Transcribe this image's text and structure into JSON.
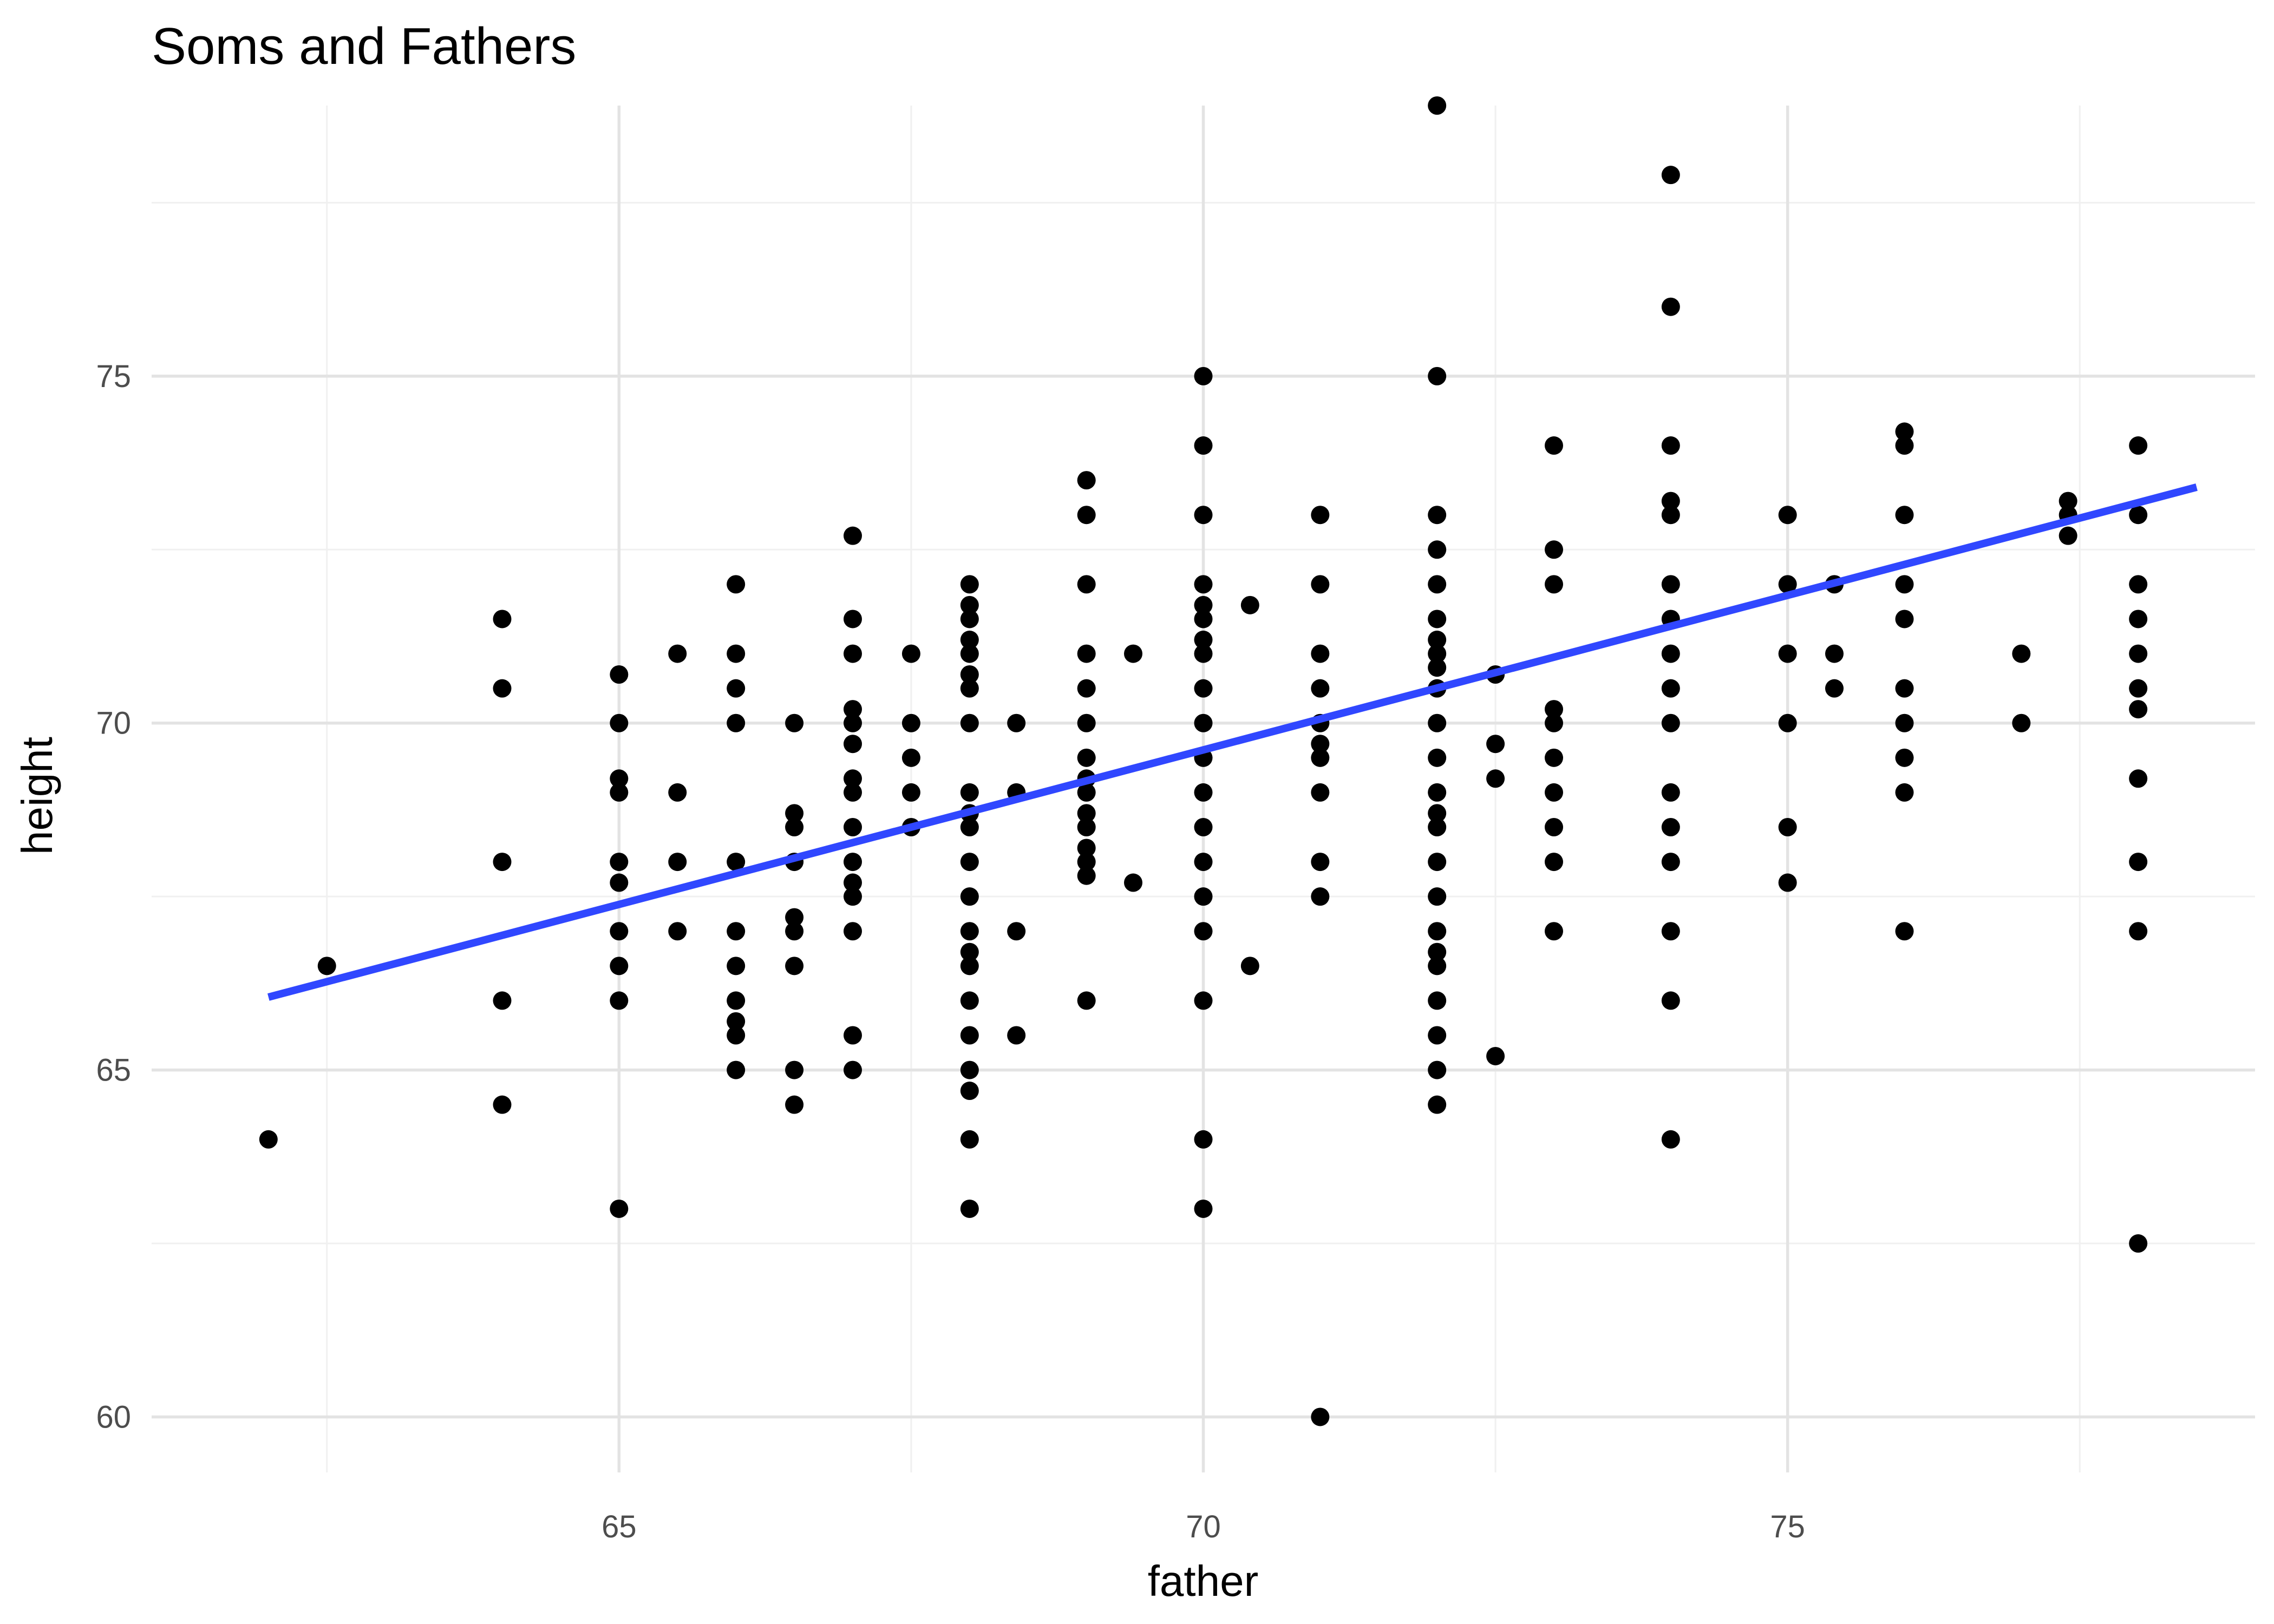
{
  "chart_data": {
    "type": "scatter",
    "title": "Soms and Fathers",
    "xlabel": "father",
    "ylabel": "height",
    "xlim": [
      61.0,
      79.0
    ],
    "ylim": [
      59.2,
      78.9
    ],
    "x_ticks": [
      65,
      70,
      75
    ],
    "y_ticks": [
      60,
      65,
      70,
      75
    ],
    "x_tick_labels": [
      "65",
      "70",
      "75"
    ],
    "y_tick_labels": [
      "60",
      "65",
      "70",
      "75"
    ],
    "grid": true,
    "legend": "none",
    "point_color": "#000000",
    "trend_line_color": "#3047ff",
    "trend_line": {
      "x": [
        62.0,
        78.5
      ],
      "y": [
        66.05,
        73.4
      ]
    },
    "points": [
      [
        62.0,
        64.0
      ],
      [
        62.5,
        66.5
      ],
      [
        64.0,
        71.5
      ],
      [
        64.0,
        70.5
      ],
      [
        64.0,
        68.0
      ],
      [
        64.0,
        66.0
      ],
      [
        64.0,
        64.5
      ],
      [
        65.0,
        70.7
      ],
      [
        65.0,
        70.0
      ],
      [
        65.0,
        69.2
      ],
      [
        65.0,
        69.0
      ],
      [
        65.0,
        68.0
      ],
      [
        65.0,
        67.7
      ],
      [
        65.0,
        67.0
      ],
      [
        65.0,
        66.5
      ],
      [
        65.0,
        66.0
      ],
      [
        65.0,
        63.0
      ],
      [
        65.5,
        71.0
      ],
      [
        65.5,
        69.0
      ],
      [
        65.5,
        68.0
      ],
      [
        65.5,
        67.0
      ],
      [
        66.0,
        72.0
      ],
      [
        66.0,
        71.0
      ],
      [
        66.0,
        70.5
      ],
      [
        66.0,
        70.0
      ],
      [
        66.0,
        68.0
      ],
      [
        66.0,
        67.0
      ],
      [
        66.0,
        66.5
      ],
      [
        66.0,
        66.0
      ],
      [
        66.0,
        65.7
      ],
      [
        66.0,
        65.5
      ],
      [
        66.0,
        65.0
      ],
      [
        66.5,
        70.0
      ],
      [
        66.5,
        68.7
      ],
      [
        66.5,
        68.5
      ],
      [
        66.5,
        68.0
      ],
      [
        66.5,
        67.2
      ],
      [
        66.5,
        67.0
      ],
      [
        66.5,
        66.5
      ],
      [
        66.5,
        65.0
      ],
      [
        66.5,
        64.5
      ],
      [
        67.0,
        72.7
      ],
      [
        67.0,
        71.5
      ],
      [
        67.0,
        71.0
      ],
      [
        67.0,
        70.2
      ],
      [
        67.0,
        70.0
      ],
      [
        67.0,
        69.7
      ],
      [
        67.0,
        69.2
      ],
      [
        67.0,
        69.0
      ],
      [
        67.0,
        68.5
      ],
      [
        67.0,
        68.0
      ],
      [
        67.0,
        67.7
      ],
      [
        67.0,
        67.5
      ],
      [
        67.0,
        67.0
      ],
      [
        67.0,
        65.5
      ],
      [
        67.0,
        65.0
      ],
      [
        67.5,
        71.0
      ],
      [
        67.5,
        70.0
      ],
      [
        67.5,
        69.5
      ],
      [
        67.5,
        69.0
      ],
      [
        67.5,
        68.5
      ],
      [
        68.0,
        72.0
      ],
      [
        68.0,
        71.7
      ],
      [
        68.0,
        71.5
      ],
      [
        68.0,
        71.2
      ],
      [
        68.0,
        71.0
      ],
      [
        68.0,
        70.7
      ],
      [
        68.0,
        70.5
      ],
      [
        68.0,
        70.0
      ],
      [
        68.0,
        69.0
      ],
      [
        68.0,
        68.7
      ],
      [
        68.0,
        68.5
      ],
      [
        68.0,
        68.0
      ],
      [
        68.0,
        67.5
      ],
      [
        68.0,
        67.0
      ],
      [
        68.0,
        66.7
      ],
      [
        68.0,
        66.5
      ],
      [
        68.0,
        66.0
      ],
      [
        68.0,
        65.5
      ],
      [
        68.0,
        65.0
      ],
      [
        68.0,
        64.7
      ],
      [
        68.0,
        64.0
      ],
      [
        68.0,
        63.0
      ],
      [
        68.4,
        70.0
      ],
      [
        68.4,
        69.0
      ],
      [
        68.4,
        67.0
      ],
      [
        68.4,
        65.5
      ],
      [
        69.0,
        73.5
      ],
      [
        69.0,
        73.0
      ],
      [
        69.0,
        72.0
      ],
      [
        69.0,
        71.0
      ],
      [
        69.0,
        70.5
      ],
      [
        69.0,
        70.0
      ],
      [
        69.0,
        69.5
      ],
      [
        69.0,
        69.2
      ],
      [
        69.0,
        69.0
      ],
      [
        69.0,
        68.7
      ],
      [
        69.0,
        68.5
      ],
      [
        69.0,
        68.2
      ],
      [
        69.0,
        68.0
      ],
      [
        69.0,
        67.8
      ],
      [
        69.0,
        66.0
      ],
      [
        69.4,
        71.0
      ],
      [
        69.4,
        67.7
      ],
      [
        70.0,
        75.0
      ],
      [
        70.0,
        74.0
      ],
      [
        70.0,
        73.0
      ],
      [
        70.0,
        72.0
      ],
      [
        70.0,
        71.7
      ],
      [
        70.0,
        71.5
      ],
      [
        70.0,
        71.2
      ],
      [
        70.0,
        71.0
      ],
      [
        70.0,
        70.5
      ],
      [
        70.0,
        70.0
      ],
      [
        70.0,
        69.5
      ],
      [
        70.0,
        69.0
      ],
      [
        70.0,
        68.5
      ],
      [
        70.0,
        68.0
      ],
      [
        70.0,
        67.5
      ],
      [
        70.0,
        67.0
      ],
      [
        70.0,
        66.0
      ],
      [
        70.0,
        64.0
      ],
      [
        70.0,
        63.0
      ],
      [
        70.4,
        71.7
      ],
      [
        70.4,
        66.5
      ],
      [
        71.0,
        73.0
      ],
      [
        71.0,
        72.0
      ],
      [
        71.0,
        71.0
      ],
      [
        71.0,
        70.5
      ],
      [
        71.0,
        70.0
      ],
      [
        71.0,
        69.7
      ],
      [
        71.0,
        69.5
      ],
      [
        71.0,
        69.0
      ],
      [
        71.0,
        68.0
      ],
      [
        71.0,
        67.5
      ],
      [
        71.0,
        60.0
      ],
      [
        72.0,
        78.9
      ],
      [
        72.0,
        75.0
      ],
      [
        72.0,
        73.0
      ],
      [
        72.0,
        72.5
      ],
      [
        72.0,
        72.0
      ],
      [
        72.0,
        71.5
      ],
      [
        72.0,
        71.2
      ],
      [
        72.0,
        71.0
      ],
      [
        72.0,
        70.8
      ],
      [
        72.0,
        70.5
      ],
      [
        72.0,
        70.0
      ],
      [
        72.0,
        69.5
      ],
      [
        72.0,
        69.0
      ],
      [
        72.0,
        68.7
      ],
      [
        72.0,
        68.5
      ],
      [
        72.0,
        68.0
      ],
      [
        72.0,
        67.5
      ],
      [
        72.0,
        67.0
      ],
      [
        72.0,
        66.7
      ],
      [
        72.0,
        66.5
      ],
      [
        72.0,
        66.0
      ],
      [
        72.0,
        65.5
      ],
      [
        72.0,
        65.0
      ],
      [
        72.0,
        64.5
      ],
      [
        72.5,
        70.7
      ],
      [
        72.5,
        69.7
      ],
      [
        72.5,
        69.2
      ],
      [
        72.5,
        65.2
      ],
      [
        73.0,
        74.0
      ],
      [
        73.0,
        72.5
      ],
      [
        73.0,
        72.0
      ],
      [
        73.0,
        70.2
      ],
      [
        73.0,
        70.0
      ],
      [
        73.0,
        69.5
      ],
      [
        73.0,
        69.0
      ],
      [
        73.0,
        68.5
      ],
      [
        73.0,
        68.0
      ],
      [
        73.0,
        67.0
      ],
      [
        74.0,
        77.9
      ],
      [
        74.0,
        76.0
      ],
      [
        74.0,
        74.0
      ],
      [
        74.0,
        73.2
      ],
      [
        74.0,
        73.0
      ],
      [
        74.0,
        72.0
      ],
      [
        74.0,
        71.5
      ],
      [
        74.0,
        71.0
      ],
      [
        74.0,
        70.5
      ],
      [
        74.0,
        70.0
      ],
      [
        74.0,
        69.0
      ],
      [
        74.0,
        68.5
      ],
      [
        74.0,
        68.0
      ],
      [
        74.0,
        67.0
      ],
      [
        74.0,
        66.0
      ],
      [
        74.0,
        64.0
      ],
      [
        75.0,
        73.0
      ],
      [
        75.0,
        72.0
      ],
      [
        75.0,
        71.0
      ],
      [
        75.0,
        70.0
      ],
      [
        75.0,
        68.5
      ],
      [
        75.0,
        67.7
      ],
      [
        75.4,
        72.0
      ],
      [
        75.4,
        71.0
      ],
      [
        75.4,
        70.5
      ],
      [
        76.0,
        74.2
      ],
      [
        76.0,
        74.0
      ],
      [
        76.0,
        73.0
      ],
      [
        76.0,
        72.0
      ],
      [
        76.0,
        71.5
      ],
      [
        76.0,
        70.5
      ],
      [
        76.0,
        70.0
      ],
      [
        76.0,
        69.5
      ],
      [
        76.0,
        69.0
      ],
      [
        76.0,
        67.0
      ],
      [
        77.0,
        71.0
      ],
      [
        77.0,
        70.0
      ],
      [
        77.4,
        73.2
      ],
      [
        77.4,
        73.0
      ],
      [
        77.4,
        72.7
      ],
      [
        78.0,
        74.0
      ],
      [
        78.0,
        73.0
      ],
      [
        78.0,
        72.0
      ],
      [
        78.0,
        71.5
      ],
      [
        78.0,
        71.0
      ],
      [
        78.0,
        70.5
      ],
      [
        78.0,
        70.2
      ],
      [
        78.0,
        69.2
      ],
      [
        78.0,
        68.0
      ],
      [
        78.0,
        67.0
      ],
      [
        78.0,
        62.5
      ]
    ]
  }
}
